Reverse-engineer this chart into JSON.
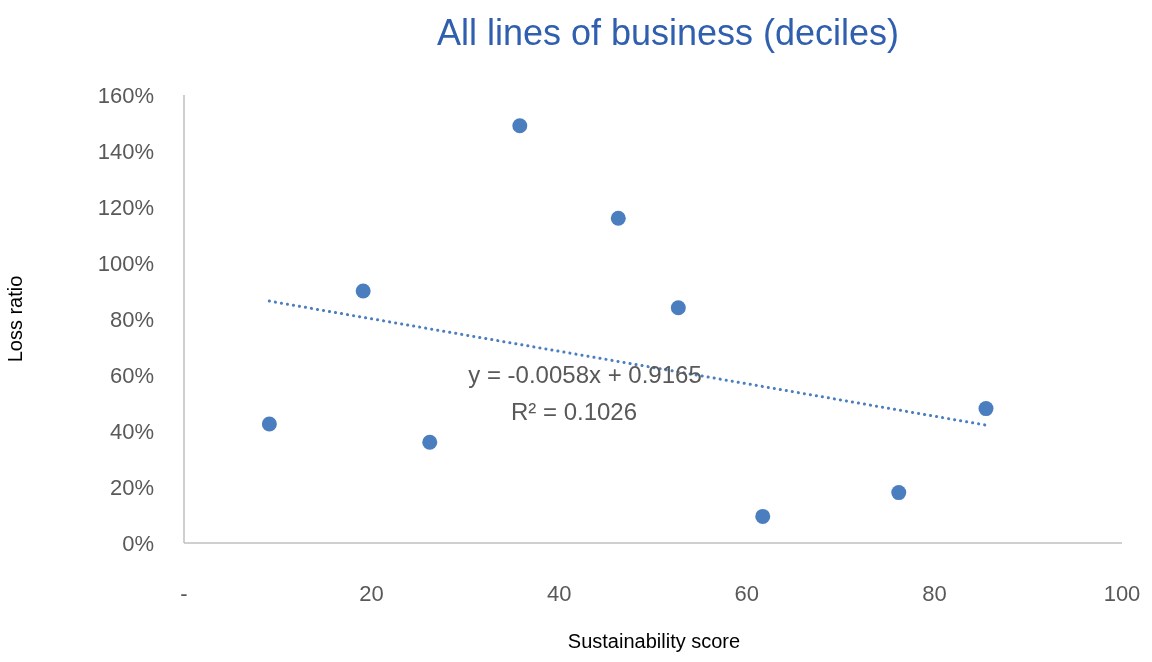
{
  "chart_data": {
    "type": "scatter",
    "title": "All lines of business (deciles)",
    "xlabel": "Sustainability score",
    "ylabel": "Loss ratio",
    "xlim": [
      0,
      100
    ],
    "xticks": [
      {
        "value": 0,
        "label": "-"
      },
      20,
      40,
      60,
      80,
      100
    ],
    "ylim": [
      0,
      160
    ],
    "yticks": [
      {
        "value": 0,
        "label": "0%"
      },
      {
        "value": 20,
        "label": "20%"
      },
      {
        "value": 40,
        "label": "40%"
      },
      {
        "value": 60,
        "label": "60%"
      },
      {
        "value": 80,
        "label": "80%"
      },
      {
        "value": 100,
        "label": "100%"
      },
      {
        "value": 120,
        "label": "120%"
      },
      {
        "value": 140,
        "label": "140%"
      },
      {
        "value": 160,
        "label": "160%"
      }
    ],
    "grid": false,
    "marker": "circle",
    "series": [
      {
        "color": "#4a7ebf",
        "x": [
          9.1,
          19.1,
          26.2,
          35.8,
          46.3,
          52.7,
          61.7,
          76.2,
          85.5
        ],
        "values": [
          42.5,
          90,
          36,
          149,
          116,
          84,
          9.5,
          18,
          48
        ]
      },
      {
        "type": "line",
        "color": "#4a7ebf",
        "line_style": "dotted",
        "marker": "none",
        "x": [
          9.1,
          85.5
        ],
        "values": [
          86.4,
          42.1
        ]
      }
    ],
    "annotations": [
      "y = -0.0058x + 0.9165",
      "R² = 0.1026"
    ]
  }
}
